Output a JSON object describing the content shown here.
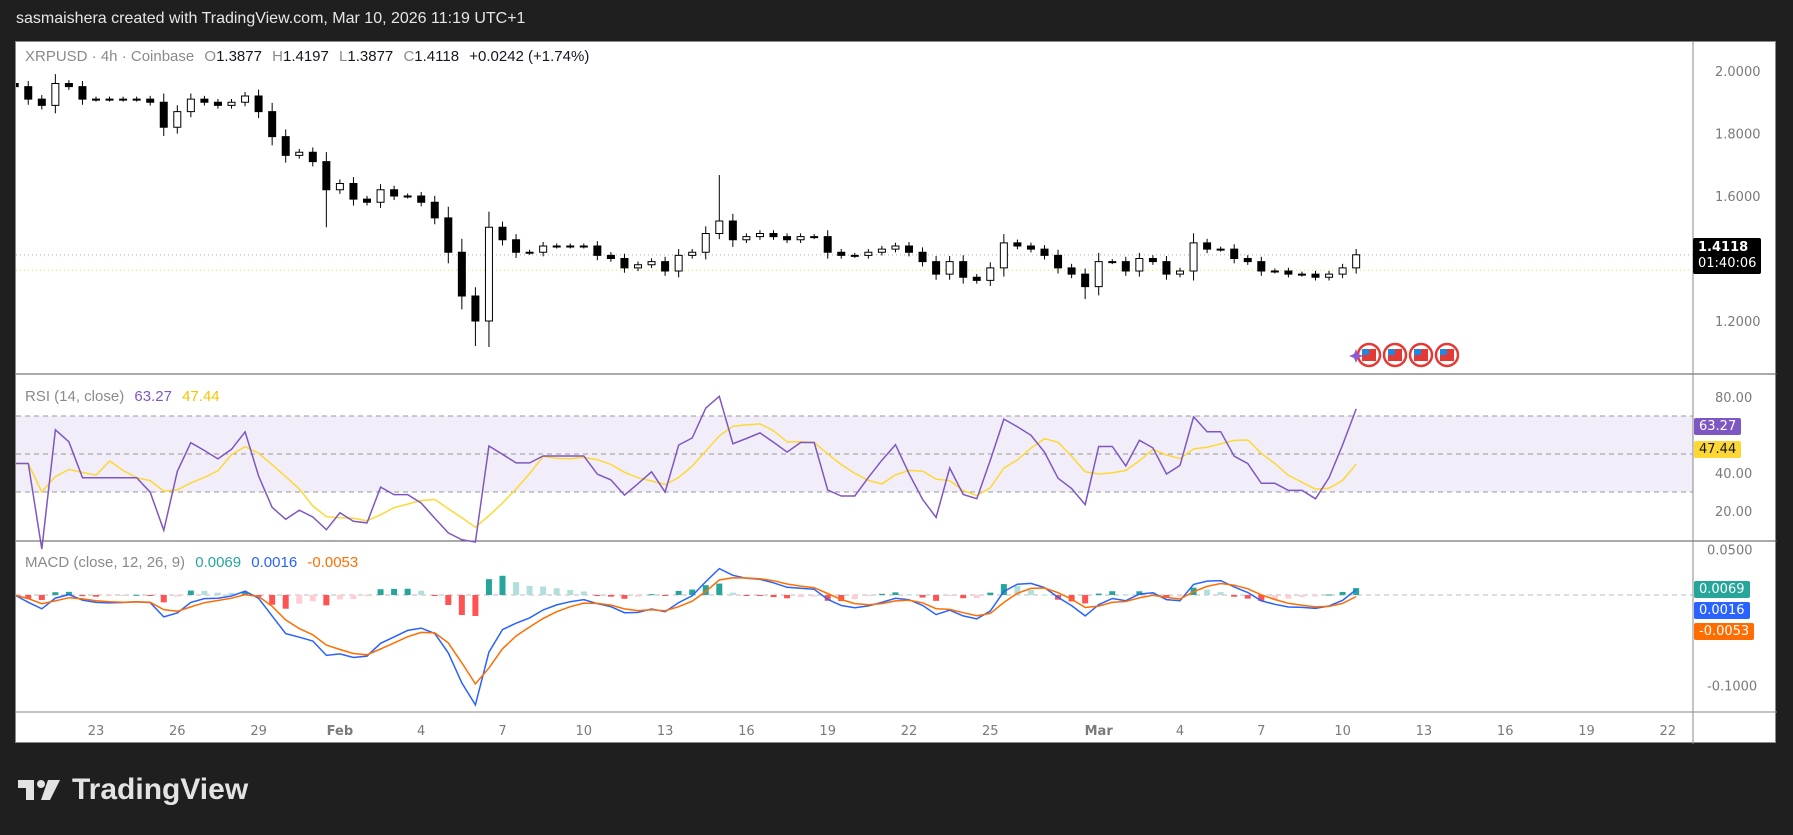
{
  "credit": "sasmaishera created with TradingView.com, Mar 10, 2026 11:19 UTC+1",
  "logo": "TradingView",
  "legend": {
    "symbol": "XRPUSD · 4h · Coinbase",
    "o_label": "O",
    "o": "1.3877",
    "h_label": "H",
    "h": "1.4197",
    "l_label": "L",
    "l": "1.3877",
    "c_label": "C",
    "c": "1.4118",
    "change": "+0.0242 (+1.74%)"
  },
  "price_badge": {
    "price": "1.4118",
    "countdown": "01:40:06"
  },
  "rsi": {
    "title": "RSI (14, close)",
    "value": "63.27",
    "ma": "47.44",
    "value_color": "#7e57c2",
    "ma_color": "#fdd835"
  },
  "macd": {
    "title": "MACD (close, 12, 26, 9)",
    "hist": "0.0069",
    "macd": "0.0016",
    "signal": "-0.0053",
    "hist_color": "#26a69a",
    "macd_color": "#2962ff",
    "signal_color": "#ff6d00"
  },
  "chart_data": [
    {
      "type": "candlestick",
      "title": "XRPUSD · 4h · Coinbase",
      "x_start": "2026-01-20 00:00",
      "ylim": [
        1.05,
        2.05
      ],
      "y_ticks": [
        "2.0000",
        "1.8000",
        "1.6000",
        "1.2000"
      ],
      "last_price": 1.4118,
      "closes": [
        1.95,
        1.91,
        1.89,
        1.96,
        1.95,
        1.91,
        1.91,
        1.91,
        1.91,
        1.91,
        1.9,
        1.82,
        1.87,
        1.91,
        1.9,
        1.89,
        1.9,
        1.92,
        1.87,
        1.79,
        1.73,
        1.74,
        1.71,
        1.62,
        1.64,
        1.59,
        1.58,
        1.62,
        1.6,
        1.6,
        1.58,
        1.53,
        1.42,
        1.28,
        1.2,
        1.5,
        1.46,
        1.42,
        1.42,
        1.44,
        1.44,
        1.44,
        1.44,
        1.41,
        1.4,
        1.37,
        1.38,
        1.39,
        1.36,
        1.41,
        1.42,
        1.48,
        1.52,
        1.46,
        1.47,
        1.48,
        1.47,
        1.46,
        1.47,
        1.47,
        1.42,
        1.41,
        1.41,
        1.42,
        1.43,
        1.44,
        1.42,
        1.39,
        1.35,
        1.39,
        1.34,
        1.33,
        1.37,
        1.45,
        1.44,
        1.43,
        1.41,
        1.37,
        1.35,
        1.31,
        1.39,
        1.39,
        1.36,
        1.4,
        1.39,
        1.35,
        1.36,
        1.45,
        1.43,
        1.43,
        1.4,
        1.39,
        1.36,
        1.36,
        1.35,
        1.35,
        1.34,
        1.35,
        1.37,
        1.4118
      ],
      "extremes": [
        {
          "date": "2026-01-21 12:00",
          "high": 1.99
        },
        {
          "date": "2026-01-31 12:00",
          "low": 1.5
        },
        {
          "date": "2026-02-06 00:00",
          "low": 1.12
        },
        {
          "date": "2026-02-06 12:00",
          "high": 1.55
        },
        {
          "date": "2026-02-15 00:00",
          "high": 1.667
        },
        {
          "date": "2026-02-28 12:00",
          "low": 1.27
        }
      ]
    },
    {
      "type": "line",
      "title": "RSI (14, close)",
      "ylim": [
        10,
        90
      ],
      "y_ticks": [
        "80.00",
        "40.00",
        "20.00"
      ],
      "bands": [
        70,
        50,
        30
      ]
    },
    {
      "type": "bar+line",
      "title": "MACD (close, 12, 26, 9)",
      "ylim": [
        -0.115,
        0.06
      ],
      "y_ticks": [
        "0.0500",
        "-0.1000"
      ]
    }
  ],
  "x_axis": [
    {
      "date": "2026-01-23",
      "label": "23"
    },
    {
      "date": "2026-01-26",
      "label": "26"
    },
    {
      "date": "2026-01-29",
      "label": "29"
    },
    {
      "date": "2026-02-01",
      "label": "Feb",
      "bold": true
    },
    {
      "date": "2026-02-04",
      "label": "4"
    },
    {
      "date": "2026-02-07",
      "label": "7"
    },
    {
      "date": "2026-02-10",
      "label": "10"
    },
    {
      "date": "2026-02-13",
      "label": "13"
    },
    {
      "date": "2026-02-16",
      "label": "16"
    },
    {
      "date": "2026-02-19",
      "label": "19"
    },
    {
      "date": "2026-02-22",
      "label": "22"
    },
    {
      "date": "2026-02-25",
      "label": "25"
    },
    {
      "date": "2026-03-01",
      "label": "Mar",
      "bold": true
    },
    {
      "date": "2026-03-04",
      "label": "4"
    },
    {
      "date": "2026-03-07",
      "label": "7"
    },
    {
      "date": "2026-03-10",
      "label": "10"
    },
    {
      "date": "2026-03-13",
      "label": "13"
    },
    {
      "date": "2026-03-16",
      "label": "16"
    },
    {
      "date": "2026-03-19",
      "label": "19"
    },
    {
      "date": "2026-03-22",
      "label": "22"
    }
  ],
  "colors": {
    "up_body": "#ffffff",
    "down_body": "#000000",
    "rsi_band": "#7e57c2",
    "price_line": "#fdd835"
  },
  "events_icons": [
    "us-flag-icon",
    "us-flag-icon",
    "us-flag-icon",
    "us-flag-icon"
  ]
}
